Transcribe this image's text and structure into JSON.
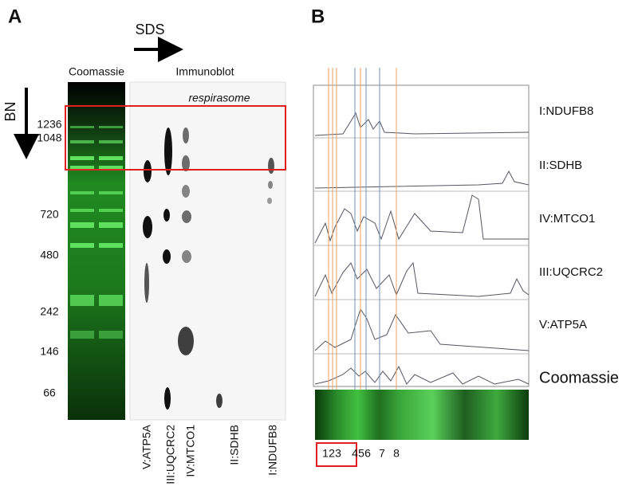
{
  "panel_a": {
    "label": "A",
    "sds": "SDS",
    "bn": "BN",
    "coomassie": "Coomassie",
    "immunoblot": "Immunoblot",
    "respirasome": "respirasome",
    "markers": [
      "1236",
      "1048",
      "720",
      "480",
      "242",
      "146",
      "66"
    ],
    "lanes": [
      "V:ATP5A",
      "III:UQCRC2",
      "IV:MTCO1",
      "II:SDHB",
      "I:NDUFB8"
    ]
  },
  "panel_b": {
    "label": "B",
    "traces": [
      "I:NDUFB8",
      "II:SDHB",
      "IV:MTCO1",
      "III:UQCRC2",
      "V:ATP5A",
      "Coomassie"
    ],
    "bands": [
      "1",
      "2",
      "3",
      "4",
      "5",
      "6",
      "7",
      "8"
    ]
  }
}
